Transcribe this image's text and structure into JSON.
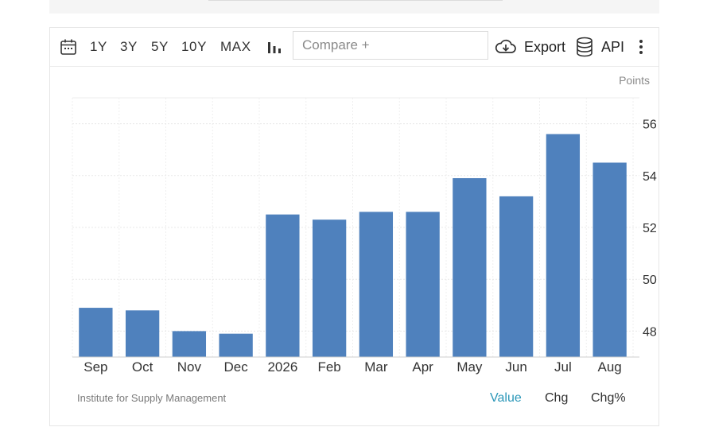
{
  "toolbar": {
    "ranges": [
      "1Y",
      "3Y",
      "5Y",
      "10Y",
      "MAX"
    ],
    "compare_placeholder": "Compare +",
    "export_label": "Export",
    "api_label": "API"
  },
  "footer": {
    "source": "Institute for Supply Management",
    "modes": [
      "Value",
      "Chg",
      "Chg%"
    ]
  },
  "colors": {
    "bar": "#4f81bd",
    "accent": "#2b97b8"
  },
  "chart_data": {
    "type": "bar",
    "categories": [
      "Sep",
      "Oct",
      "Nov",
      "Dec",
      "2026",
      "Feb",
      "Mar",
      "Apr",
      "May",
      "Jun",
      "Jul",
      "Aug"
    ],
    "values": [
      48.9,
      48.8,
      48.0,
      47.9,
      52.5,
      52.3,
      52.6,
      52.6,
      53.9,
      53.2,
      55.6,
      54.5
    ],
    "y_ticks": [
      48,
      50,
      52,
      54,
      56
    ],
    "ylim": [
      47,
      57
    ],
    "unit": "Points",
    "grid": true
  }
}
